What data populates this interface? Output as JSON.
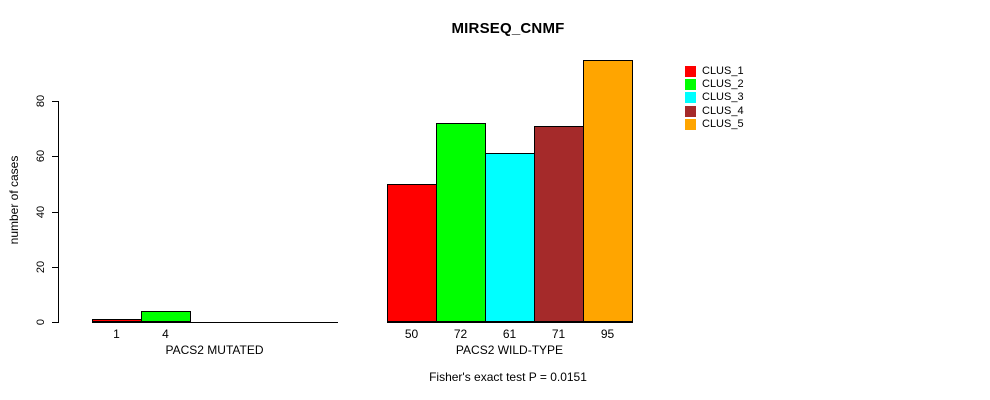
{
  "chart_data": {
    "type": "bar",
    "title": "MIRSEQ_CNMF",
    "ylabel": "number of cases",
    "xlabel": "",
    "annotation": "Fisher's exact test P = 0.0151",
    "axis_ticks": [
      0,
      20,
      40,
      60,
      80
    ],
    "ylim": [
      0,
      95
    ],
    "grid": false,
    "legend_position": "right",
    "bar_value_labels": true,
    "series": [
      {
        "name": "CLUS_1",
        "color": "#FF0000"
      },
      {
        "name": "CLUS_2",
        "color": "#00FF00"
      },
      {
        "name": "CLUS_3",
        "color": "#00FFFF"
      },
      {
        "name": "CLUS_4",
        "color": "#A52A2A"
      },
      {
        "name": "CLUS_5",
        "color": "#FFA500"
      }
    ],
    "groups": [
      {
        "label": "PACS2 MUTATED",
        "values": [
          1,
          4,
          0,
          0,
          0
        ]
      },
      {
        "label": "PACS2 WILD-TYPE",
        "values": [
          50,
          72,
          61,
          71,
          95
        ]
      }
    ]
  }
}
